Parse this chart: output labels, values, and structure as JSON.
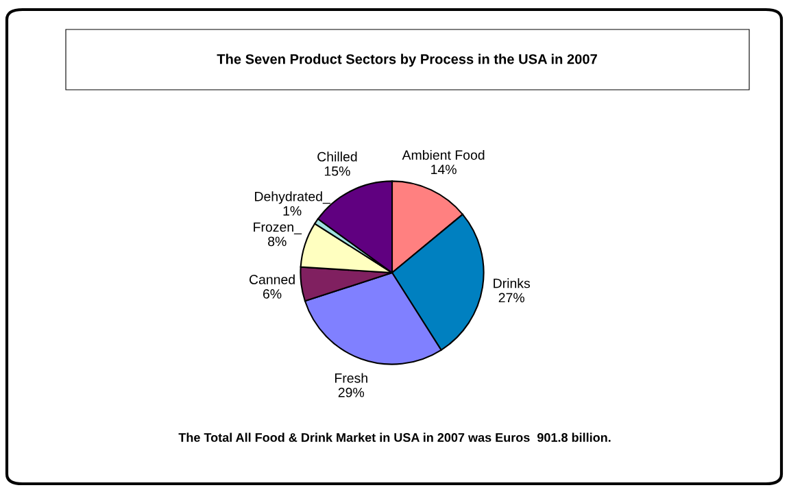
{
  "chart_data": {
    "type": "pie",
    "title": "The Seven Product Sectors by Process in the USA in 2007",
    "categories": [
      "Ambient Food",
      "Drinks",
      "Fresh",
      "Canned",
      "Frozen_",
      "Dehydrated_",
      "Chilled"
    ],
    "values": [
      14,
      27,
      29,
      6,
      8,
      1,
      15
    ],
    "value_labels": [
      "14%",
      "27%",
      "29%",
      "6%",
      "8%",
      "1%",
      "15%"
    ],
    "colors": [
      "#ff8080",
      "#0080c0",
      "#8080ff",
      "#802060",
      "#ffffc0",
      "#a0e0e0",
      "#600080"
    ],
    "annotations": [
      "The Total All Food & Drink Market in USA in 2007 was Euros  901.8 billion."
    ]
  }
}
